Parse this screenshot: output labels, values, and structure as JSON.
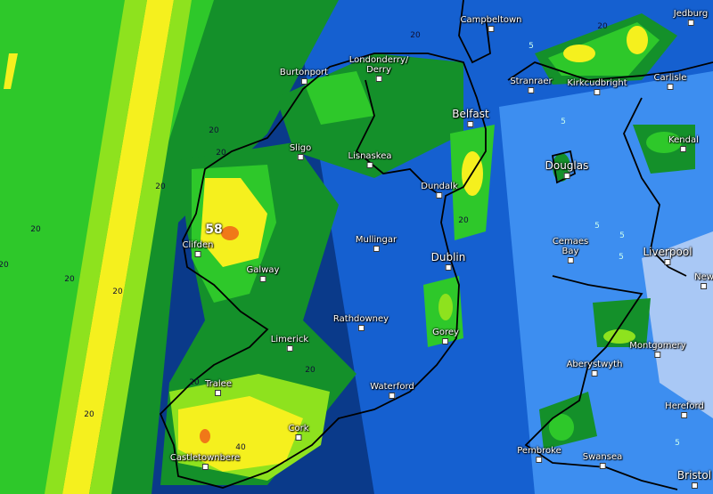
{
  "map": {
    "type": "precipitation-accumulation",
    "colors": {
      "sea_deep": "#0a3a8a",
      "blue": "#1560d0",
      "light_blue": "#3d8ef0",
      "pale": "#a9c8f5",
      "dark_green": "#14902a",
      "green": "#2ec82a",
      "light_green": "#8ee21e",
      "yellow": "#f5f01e",
      "orange": "#f07818",
      "coast": "#000000"
    },
    "max_value": "58",
    "contour_labels": [
      "20",
      "20",
      "20",
      "20",
      "20",
      "20",
      "20",
      "20",
      "20",
      "20",
      "20",
      "20",
      "40",
      "5",
      "5",
      "5",
      "5",
      "5",
      "5",
      "20"
    ],
    "cities": [
      {
        "name": "Campbeltown"
      },
      {
        "name": "Jedburg"
      },
      {
        "name": "Londonderry/\nDerry"
      },
      {
        "name": "Burtonport"
      },
      {
        "name": "Stranraer"
      },
      {
        "name": "Kirkcudbright"
      },
      {
        "name": "Carlisle"
      },
      {
        "name": "Belfast"
      },
      {
        "name": "Kendal"
      },
      {
        "name": "Sligo"
      },
      {
        "name": "Lisnaskea"
      },
      {
        "name": "Douglas"
      },
      {
        "name": "Dundalk"
      },
      {
        "name": "Mullingar"
      },
      {
        "name": "Clifden"
      },
      {
        "name": "Galway"
      },
      {
        "name": "Dublin"
      },
      {
        "name": "Cemaes\nBay"
      },
      {
        "name": "Liverpool"
      },
      {
        "name": "Rathdowney"
      },
      {
        "name": "Limerick"
      },
      {
        "name": "Gorey"
      },
      {
        "name": "Montgomery"
      },
      {
        "name": "Aberystwyth"
      },
      {
        "name": "Tralee"
      },
      {
        "name": "Waterford"
      },
      {
        "name": "Hereford"
      },
      {
        "name": "Cork"
      },
      {
        "name": "Castletownbere"
      },
      {
        "name": "Pembroke"
      },
      {
        "name": "Swansea"
      },
      {
        "name": "Bristol"
      },
      {
        "name": "New"
      }
    ]
  }
}
